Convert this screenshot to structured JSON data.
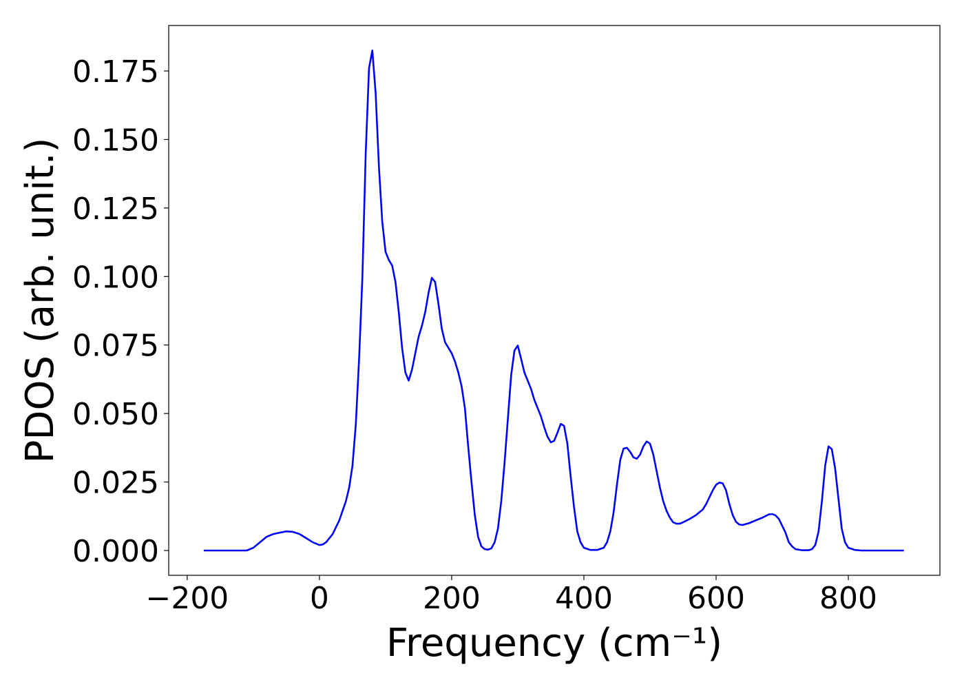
{
  "chart_data": {
    "type": "line",
    "xlabel": "Frequency (cm⁻¹)",
    "ylabel": "PDOS (arb. unit.)",
    "color": "#0000ff",
    "x": [
      -175,
      -150,
      -110,
      -100,
      -90,
      -80,
      -70,
      -60,
      -50,
      -40,
      -30,
      -20,
      -10,
      0,
      5,
      10,
      20,
      30,
      40,
      45,
      50,
      55,
      60,
      65,
      70,
      75,
      80,
      85,
      90,
      95,
      100,
      105,
      110,
      115,
      120,
      125,
      130,
      135,
      140,
      145,
      150,
      155,
      160,
      165,
      170,
      175,
      180,
      185,
      190,
      195,
      200,
      205,
      210,
      215,
      220,
      225,
      230,
      235,
      240,
      245,
      250,
      255,
      260,
      265,
      270,
      275,
      280,
      285,
      290,
      295,
      300,
      305,
      310,
      315,
      320,
      325,
      330,
      335,
      340,
      345,
      350,
      355,
      360,
      365,
      370,
      375,
      380,
      385,
      390,
      395,
      400,
      410,
      420,
      430,
      435,
      440,
      445,
      450,
      455,
      460,
      465,
      470,
      475,
      480,
      485,
      490,
      495,
      500,
      505,
      510,
      515,
      520,
      525,
      530,
      535,
      540,
      545,
      550,
      560,
      570,
      580,
      585,
      590,
      595,
      600,
      605,
      610,
      615,
      620,
      625,
      630,
      635,
      640,
      650,
      660,
      670,
      680,
      685,
      690,
      695,
      700,
      705,
      710,
      715,
      720,
      730,
      740,
      745,
      750,
      755,
      760,
      765,
      770,
      775,
      780,
      785,
      790,
      795,
      800,
      810,
      820,
      850,
      884
    ],
    "values": [
      0,
      0,
      0,
      0.001,
      0.003,
      0.005,
      0.006,
      0.0065,
      0.007,
      0.0068,
      0.006,
      0.0045,
      0.003,
      0.002,
      0.0022,
      0.003,
      0.006,
      0.011,
      0.018,
      0.023,
      0.031,
      0.046,
      0.07,
      0.1,
      0.145,
      0.176,
      0.1825,
      0.167,
      0.14,
      0.12,
      0.109,
      0.106,
      0.104,
      0.098,
      0.087,
      0.074,
      0.065,
      0.062,
      0.066,
      0.072,
      0.078,
      0.082,
      0.087,
      0.094,
      0.0995,
      0.098,
      0.09,
      0.081,
      0.076,
      0.074,
      0.072,
      0.069,
      0.065,
      0.06,
      0.052,
      0.038,
      0.025,
      0.013,
      0.005,
      0.0015,
      0.0005,
      0.0003,
      0.0008,
      0.003,
      0.008,
      0.018,
      0.032,
      0.048,
      0.064,
      0.073,
      0.0748,
      0.07,
      0.065,
      0.062,
      0.059,
      0.055,
      0.052,
      0.049,
      0.045,
      0.0415,
      0.0395,
      0.04,
      0.043,
      0.0462,
      0.0455,
      0.039,
      0.027,
      0.016,
      0.007,
      0.003,
      0.001,
      0.0002,
      0.0002,
      0.001,
      0.003,
      0.007,
      0.014,
      0.024,
      0.033,
      0.0372,
      0.0375,
      0.036,
      0.034,
      0.0335,
      0.035,
      0.038,
      0.0398,
      0.039,
      0.035,
      0.029,
      0.023,
      0.018,
      0.0145,
      0.012,
      0.0103,
      0.0098,
      0.0098,
      0.0103,
      0.0115,
      0.013,
      0.015,
      0.017,
      0.0195,
      0.022,
      0.024,
      0.0248,
      0.0245,
      0.022,
      0.017,
      0.013,
      0.0105,
      0.0095,
      0.0093,
      0.01,
      0.011,
      0.012,
      0.0132,
      0.0133,
      0.0128,
      0.0115,
      0.009,
      0.0065,
      0.003,
      0.0015,
      0.0005,
      0.0001,
      0.0001,
      0.0005,
      0.002,
      0.007,
      0.018,
      0.031,
      0.038,
      0.037,
      0.03,
      0.019,
      0.008,
      0.003,
      0.001,
      0.0002,
      0,
      0,
      0
    ],
    "xlim": [
      -228,
      938.5
    ],
    "ylim": [
      -0.00905,
      0.1916
    ],
    "xticks": [
      {
        "value": -200,
        "label": "−200"
      },
      0,
      200,
      400,
      600,
      800
    ],
    "yticks": [
      {
        "value": 0,
        "label": "0.000"
      },
      {
        "value": 0.025,
        "label": "0.025"
      },
      {
        "value": 0.05,
        "label": "0.050"
      },
      {
        "value": 0.075,
        "label": "0.075"
      },
      {
        "value": 0.1,
        "label": "0.100"
      },
      {
        "value": 0.125,
        "label": "0.125"
      },
      {
        "value": 0.15,
        "label": "0.150"
      },
      {
        "value": 0.175,
        "label": "0.175"
      }
    ],
    "grid": false
  }
}
